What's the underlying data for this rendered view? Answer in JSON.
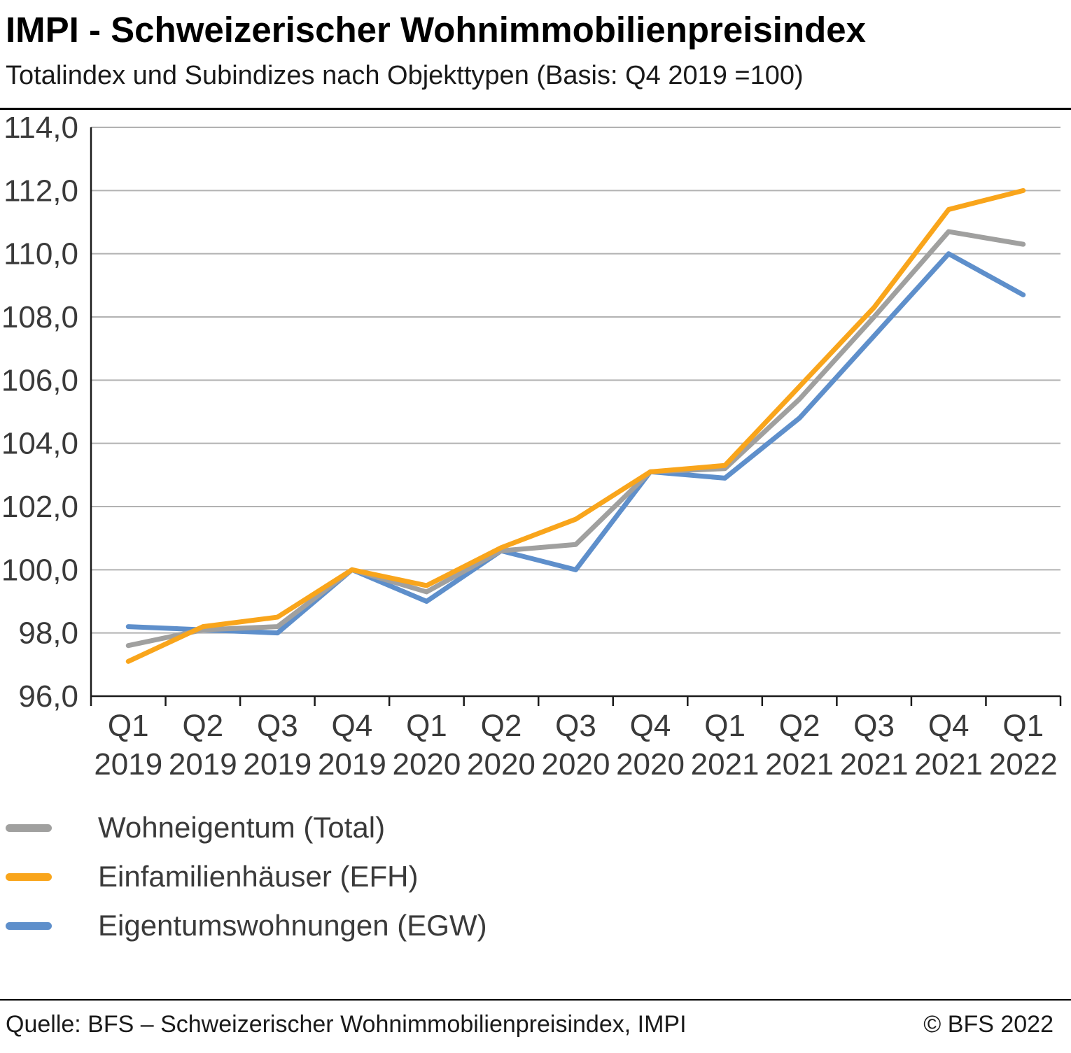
{
  "header": {
    "title": "IMPI - Schweizerischer Wohnimmobilienpreisindex",
    "subtitle": "Totalindex und Subindizes nach Objekttypen (Basis: Q4 2019 =100)"
  },
  "chart_data": {
    "type": "line",
    "title": "",
    "xlabel": "",
    "ylabel": "",
    "ylim": [
      96.0,
      114.0
    ],
    "ytick_step": 2.0,
    "number_format": "german-comma-1-decimal",
    "grid": true,
    "legend_position": "bottom-left",
    "categories": [
      "Q1 2019",
      "Q2 2019",
      "Q3 2019",
      "Q4 2019",
      "Q1 2020",
      "Q2 2020",
      "Q3 2020",
      "Q4 2020",
      "Q1 2021",
      "Q2 2021",
      "Q3 2021",
      "Q4 2021",
      "Q1 2022"
    ],
    "series": [
      {
        "name": "Wohneigentum (Total)",
        "color": "#a0a09f",
        "values": [
          97.6,
          98.1,
          98.2,
          100.0,
          99.3,
          100.6,
          100.8,
          103.1,
          103.2,
          105.4,
          108.0,
          110.7,
          110.3
        ]
      },
      {
        "name": "Einfamilienhäuser (EFH)",
        "color": "#f9a51b",
        "values": [
          97.1,
          98.2,
          98.5,
          100.0,
          99.5,
          100.7,
          101.6,
          103.1,
          103.3,
          105.8,
          108.3,
          111.4,
          112.0
        ]
      },
      {
        "name": "Eigentumswohnungen (EGW)",
        "color": "#5e8fcb",
        "values": [
          98.2,
          98.1,
          98.0,
          100.0,
          99.0,
          100.6,
          100.0,
          103.1,
          102.9,
          104.8,
          107.4,
          110.0,
          108.7
        ]
      }
    ],
    "draw_order": [
      2,
      0,
      1
    ],
    "axis_color": "#1a1a1a",
    "gridline_color": "#b2b2b2",
    "tick_label_color": "#3a3a3a"
  },
  "footer": {
    "source": "Quelle: BFS – Schweizerischer Wohnimmobilienpreisindex, IMPI",
    "copyright": "© BFS 2022"
  }
}
